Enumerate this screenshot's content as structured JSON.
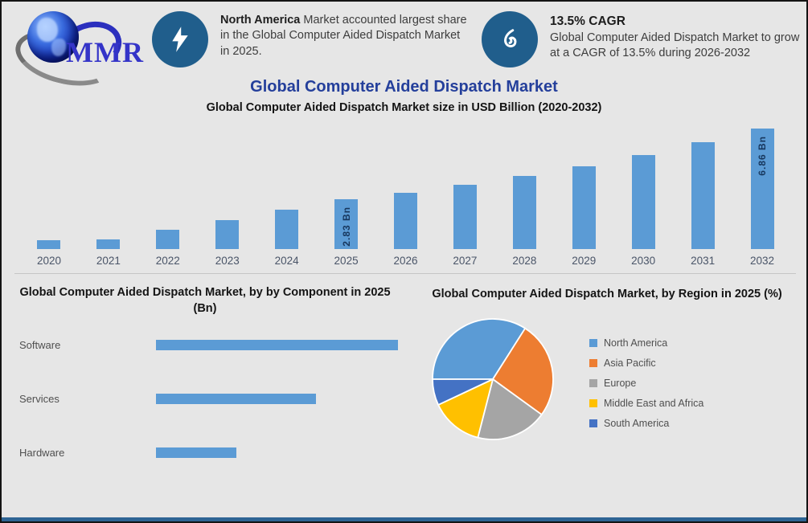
{
  "logo": {
    "text": "MMR"
  },
  "title": "Global Computer Aided Dispatch Market",
  "header": {
    "callout_1": {
      "icon": "lightning-icon",
      "bold_lead": "North America",
      "text": " Market accounted largest share in the Global Computer Aided Dispatch Market in 2025."
    },
    "callout_2": {
      "icon": "growth-icon",
      "heading": "13.5% CAGR",
      "text": "Global Computer Aided Dispatch Market to grow at a CAGR of 13.5% during 2026-2032"
    }
  },
  "colors": {
    "background": "#e6e6e6",
    "frame_border": "#141414",
    "icon_circle": "#205e8c",
    "title_blue": "#243f9b",
    "bar_blue": "#5b9bd5",
    "bar_value_text": "#17375e",
    "axis_label": "#4a5568",
    "bottom_strip": "#2e6494"
  },
  "chart_data": [
    {
      "type": "bar",
      "title": "Global Computer Aided Dispatch Market size in USD Billion (2020-2032)",
      "categories": [
        "2020",
        "2021",
        "2022",
        "2023",
        "2024",
        "2025",
        "2026",
        "2027",
        "2028",
        "2029",
        "2030",
        "2031",
        "2032"
      ],
      "values": [
        0.5,
        0.55,
        1.1,
        1.65,
        2.25,
        2.83,
        3.21,
        3.65,
        4.14,
        4.7,
        5.33,
        6.05,
        6.86
      ],
      "value_labels": [
        "",
        "",
        "",
        "",
        "",
        "2.83 Bn",
        "",
        "",
        "",
        "",
        "",
        "",
        "6.86 Bn"
      ],
      "unit": "USD Billion",
      "ylim": [
        0,
        7.3
      ],
      "bar_color": "#5b9bd5",
      "grid": false,
      "legend_position": "none"
    },
    {
      "type": "bar",
      "orientation": "horizontal",
      "title": "Global Computer Aided Dispatch Market, by by Component in 2025 (Bn)",
      "categories": [
        "Software",
        "Services",
        "Hardware"
      ],
      "values": [
        1.42,
        0.94,
        0.47
      ],
      "unit": "Bn",
      "xlim": [
        0,
        1.5
      ],
      "bar_color": "#5b9bd5",
      "grid": false,
      "legend_position": "none"
    },
    {
      "type": "pie",
      "title": "Global Computer Aided Dispatch Market, by Region in 2025 (%)",
      "labels": [
        "North America",
        "Asia Pacific",
        "Europe",
        "Middle East and Africa",
        "South America"
      ],
      "values": [
        34,
        26,
        19,
        14,
        7
      ],
      "colors": [
        "#5b9bd5",
        "#ed7d31",
        "#a5a5a5",
        "#ffc000",
        "#4472c4"
      ],
      "start_angle_deg": 270,
      "legend_position": "right"
    }
  ]
}
